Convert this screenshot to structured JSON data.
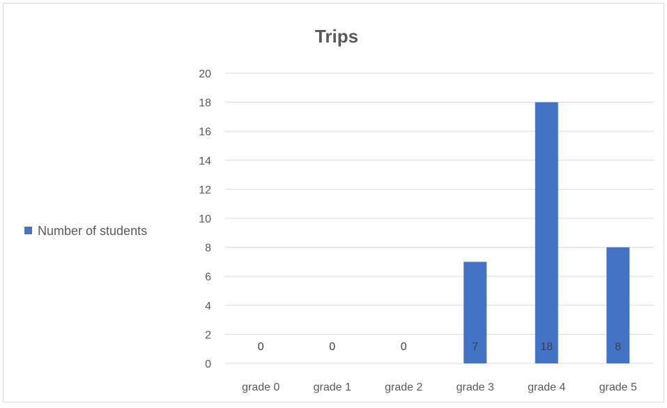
{
  "chart_data": {
    "type": "bar",
    "title": "Trips",
    "xlabel": "",
    "ylabel": "",
    "categories": [
      "grade 0",
      "grade 1",
      "grade 2",
      "grade 3",
      "grade 4",
      "grade 5"
    ],
    "series": [
      {
        "name": "Number of students",
        "values": [
          0,
          0,
          0,
          7,
          18,
          8
        ],
        "color": "#4472c4"
      }
    ],
    "ylim": [
      0,
      20
    ],
    "yticks": [
      0,
      2,
      4,
      6,
      8,
      10,
      12,
      14,
      16,
      18,
      20
    ],
    "grid": true,
    "legend_position": "left",
    "data_labels": [
      "0",
      "0",
      "0",
      "7",
      "18",
      "8"
    ]
  }
}
